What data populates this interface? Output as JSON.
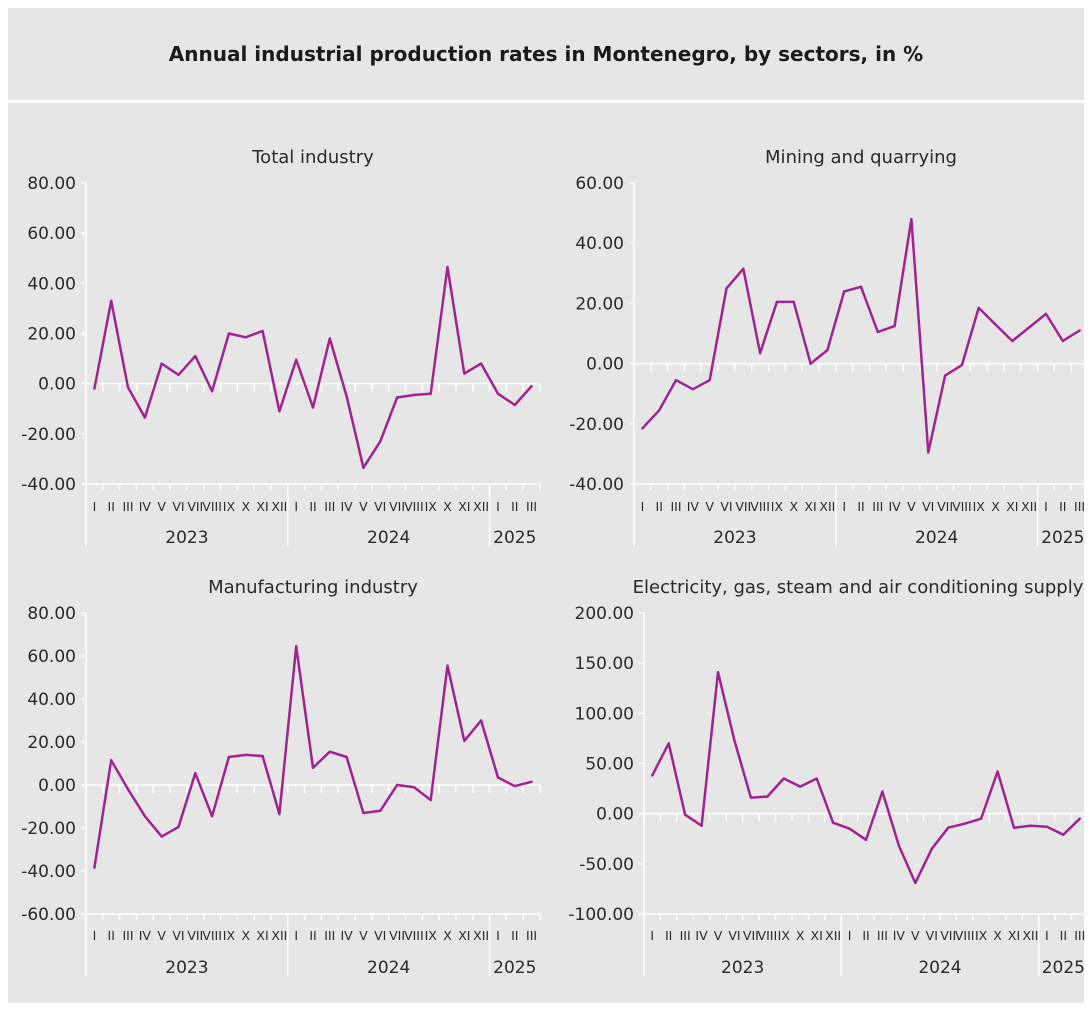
{
  "title": "Annual industrial production rates in Montenegro, by sectors, in %",
  "colors": {
    "line": "#a0238f",
    "background": "#e6e6e7",
    "axis": "#ffffff",
    "text": "#2a2a2a"
  },
  "chart_data": [
    {
      "type": "line",
      "title": "Total industry",
      "categories": [
        "I",
        "II",
        "III",
        "IV",
        "V",
        "VI",
        "VII",
        "VIII",
        "IX",
        "X",
        "XI",
        "XII",
        "I",
        "II",
        "III",
        "IV",
        "V",
        "VI",
        "VII",
        "VIII",
        "IX",
        "X",
        "XI",
        "XII",
        "I",
        "II",
        "III"
      ],
      "years": [
        "2023",
        "2024",
        "2025"
      ],
      "yticks": [
        "80.00",
        "60.00",
        "40.00",
        "20.00",
        "0.00",
        "-20.00",
        "-40.00"
      ],
      "ylim": [
        -40,
        80
      ],
      "series": [
        {
          "values": [
            -2,
            33,
            -1.5,
            -13.5,
            8,
            3.5,
            11,
            -3,
            20,
            18.5,
            21,
            -11,
            9.5,
            -9.5,
            18,
            -5,
            -33.5,
            -23,
            -5.5,
            -4.5,
            -4,
            46.5,
            4,
            8,
            -4,
            -8.5,
            -1
          ]
        }
      ]
    },
    {
      "type": "line",
      "title": "Mining and quarrying",
      "categories": [
        "I",
        "II",
        "III",
        "IV",
        "V",
        "VI",
        "VII",
        "VIII",
        "IX",
        "X",
        "XI",
        "XII",
        "I",
        "II",
        "III",
        "IV",
        "V",
        "VI",
        "VII",
        "VIII",
        "IX",
        "X",
        "XI",
        "XII",
        "I",
        "II",
        "III"
      ],
      "years": [
        "2023",
        "2024",
        "2025"
      ],
      "yticks": [
        "60.00",
        "40.00",
        "20.00",
        "0.00",
        "-20.00",
        "-40.00"
      ],
      "ylim": [
        -40,
        60
      ],
      "series": [
        {
          "values": [
            -21.5,
            -15.5,
            -5.5,
            -8.5,
            -5.5,
            25,
            31.5,
            3.5,
            20.5,
            20.5,
            0,
            4.5,
            24,
            25.5,
            10.5,
            12.5,
            48,
            -29.5,
            -4,
            -0.5,
            18.5,
            13,
            7.5,
            12,
            16.5,
            7.5,
            11
          ]
        }
      ]
    },
    {
      "type": "line",
      "title": "Manufacturing industry",
      "categories": [
        "I",
        "II",
        "III",
        "IV",
        "V",
        "VI",
        "VII",
        "VIII",
        "IX",
        "X",
        "XI",
        "XII",
        "I",
        "II",
        "III",
        "IV",
        "V",
        "VI",
        "VII",
        "VIII",
        "IX",
        "X",
        "XI",
        "XII",
        "I",
        "II",
        "III"
      ],
      "years": [
        "2023",
        "2024",
        "2025"
      ],
      "yticks": [
        "80.00",
        "60.00",
        "40.00",
        "20.00",
        "0.00",
        "-20.00",
        "-40.00",
        "-60.00"
      ],
      "ylim": [
        -60,
        80
      ],
      "series": [
        {
          "values": [
            -38.5,
            11.5,
            -2,
            -14.5,
            -24,
            -19.5,
            5.5,
            -14.5,
            13,
            14,
            13.5,
            -13.5,
            64.5,
            8,
            15.5,
            13,
            -13,
            -12,
            0,
            -1,
            -7,
            55.5,
            20.5,
            30,
            3.5,
            -0.5,
            1.5
          ]
        }
      ]
    },
    {
      "type": "line",
      "title": "Electricity, gas, steam and air conditioning supply",
      "categories": [
        "I",
        "II",
        "III",
        "IV",
        "V",
        "VI",
        "VII",
        "VIII",
        "IX",
        "X",
        "XI",
        "XII",
        "I",
        "II",
        "III",
        "IV",
        "V",
        "VI",
        "VII",
        "VIII",
        "IX",
        "X",
        "XI",
        "XII",
        "I",
        "II",
        "III"
      ],
      "years": [
        "2023",
        "2024",
        "2025"
      ],
      "yticks": [
        "200.00",
        "150.00",
        "100.00",
        "50.00",
        "0.00",
        "-50.00",
        "-100.00"
      ],
      "ylim": [
        -100,
        200
      ],
      "series": [
        {
          "values": [
            38,
            70,
            -1,
            -12,
            141,
            73,
            16,
            17,
            35,
            27,
            35,
            -9,
            -15,
            -26,
            22,
            -32,
            -69,
            -35,
            -14,
            -10,
            -5,
            42,
            -14,
            -12,
            -13,
            -21,
            -5
          ]
        }
      ]
    }
  ]
}
